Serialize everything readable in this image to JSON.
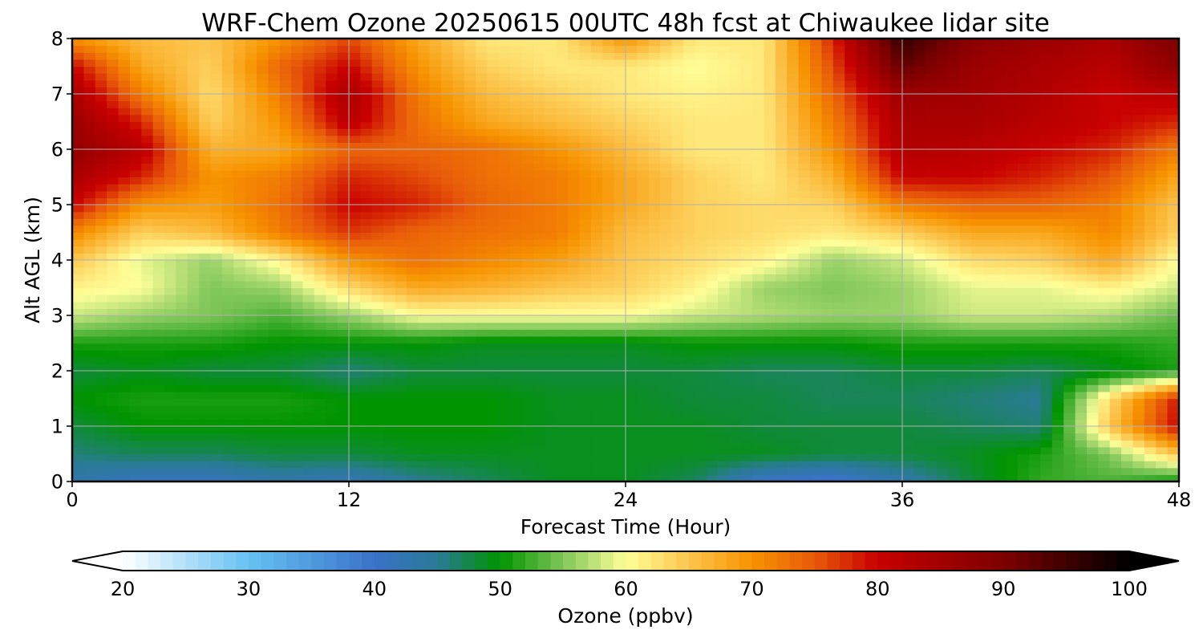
{
  "chart_data": {
    "type": "heatmap",
    "title": "WRF-Chem Ozone  20250615 00UTC 48h fcst at Chiwaukee lidar site",
    "xlabel": "Forecast Time (Hour)",
    "ylabel": "Alt AGL (km)",
    "xlim": [
      0,
      48
    ],
    "ylim": [
      0,
      8
    ],
    "xticks": [
      0,
      12,
      24,
      36,
      48
    ],
    "yticks": [
      0,
      1,
      2,
      3,
      4,
      5,
      6,
      7,
      8
    ],
    "grid": true,
    "colorbar": {
      "label": "Ozone  (ppbv)",
      "orientation": "horizontal",
      "placement": "bottom",
      "range": [
        20,
        100
      ],
      "extend": "both",
      "ticks": [
        20,
        30,
        40,
        50,
        60,
        70,
        80,
        90,
        100
      ],
      "color_stops": [
        {
          "v": 20,
          "c": "#ffffff"
        },
        {
          "v": 30,
          "c": "#66c2f2"
        },
        {
          "v": 40,
          "c": "#3a72c8"
        },
        {
          "v": 45,
          "c": "#2a7a96"
        },
        {
          "v": 50,
          "c": "#009400"
        },
        {
          "v": 55,
          "c": "#7fc65a"
        },
        {
          "v": 60,
          "c": "#ffff99"
        },
        {
          "v": 65,
          "c": "#fcc54d"
        },
        {
          "v": 70,
          "c": "#f79300"
        },
        {
          "v": 75,
          "c": "#e85a0a"
        },
        {
          "v": 80,
          "c": "#c80000"
        },
        {
          "v": 90,
          "c": "#7d0000"
        },
        {
          "v": 100,
          "c": "#000000"
        }
      ]
    },
    "x_hours": [
      0,
      3,
      6,
      9,
      12,
      15,
      18,
      21,
      24,
      27,
      30,
      33,
      36,
      39,
      42,
      45,
      48
    ],
    "y_km": [
      0,
      0.5,
      1,
      1.5,
      2,
      2.5,
      3,
      3.5,
      4,
      4.5,
      5,
      5.5,
      6,
      6.5,
      7,
      7.5,
      8
    ],
    "z_ppbv": [
      [
        43,
        41,
        41,
        43,
        42,
        45,
        47,
        49,
        49,
        47,
        40,
        39,
        43,
        48,
        52,
        53,
        50
      ],
      [
        46,
        47,
        47,
        48,
        48,
        49,
        49,
        49,
        49,
        49,
        49,
        48,
        48,
        49,
        51,
        55,
        65
      ],
      [
        48,
        50,
        50,
        50,
        50,
        50,
        50,
        49,
        49,
        49,
        48,
        48,
        48,
        47,
        46,
        65,
        80
      ],
      [
        50,
        51,
        51,
        51,
        50,
        50,
        50,
        49,
        49,
        48,
        48,
        47,
        47,
        46,
        45,
        63,
        79
      ],
      [
        48,
        49,
        48,
        48,
        46,
        48,
        48,
        48,
        48,
        48,
        47,
        47,
        48,
        48,
        47,
        49,
        51
      ],
      [
        51,
        51,
        51,
        50,
        50,
        50,
        49,
        49,
        49,
        50,
        50,
        50,
        51,
        51,
        51,
        51,
        52
      ],
      [
        58,
        56,
        55,
        53,
        56,
        60,
        60,
        60,
        60,
        58,
        57,
        56,
        56,
        58,
        58,
        57,
        54
      ],
      [
        61,
        60,
        55,
        56,
        63,
        68,
        67,
        65,
        64,
        61,
        56,
        55,
        56,
        59,
        59,
        61,
        58
      ],
      [
        65,
        59,
        56,
        61,
        70,
        73,
        71,
        69,
        65,
        63,
        61,
        56,
        58,
        63,
        64,
        68,
        60
      ],
      [
        71,
        64,
        66,
        72,
        77,
        74,
        73,
        72,
        66,
        64,
        63,
        62,
        64,
        68,
        68,
        71,
        64
      ],
      [
        80,
        70,
        69,
        73,
        80,
        78,
        74,
        72,
        68,
        64,
        63,
        64,
        72,
        74,
        74,
        72,
        65
      ],
      [
        84,
        78,
        70,
        72,
        78,
        76,
        73,
        72,
        68,
        64,
        62,
        67,
        80,
        80,
        78,
        75,
        68
      ],
      [
        87,
        82,
        67,
        68,
        74,
        74,
        73,
        70,
        66,
        62,
        62,
        70,
        83,
        82,
        80,
        78,
        72
      ],
      [
        86,
        78,
        64,
        70,
        82,
        73,
        68,
        66,
        64,
        62,
        62,
        72,
        84,
        84,
        82,
        80,
        78
      ],
      [
        84,
        72,
        63,
        72,
        84,
        72,
        66,
        64,
        62,
        61,
        62,
        74,
        86,
        85,
        83,
        80,
        82
      ],
      [
        80,
        68,
        64,
        74,
        80,
        70,
        64,
        62,
        62,
        60,
        62,
        76,
        92,
        86,
        84,
        82,
        88
      ],
      [
        70,
        66,
        65,
        70,
        76,
        68,
        62,
        62,
        70,
        62,
        62,
        78,
        96,
        88,
        86,
        84,
        90
      ]
    ]
  }
}
